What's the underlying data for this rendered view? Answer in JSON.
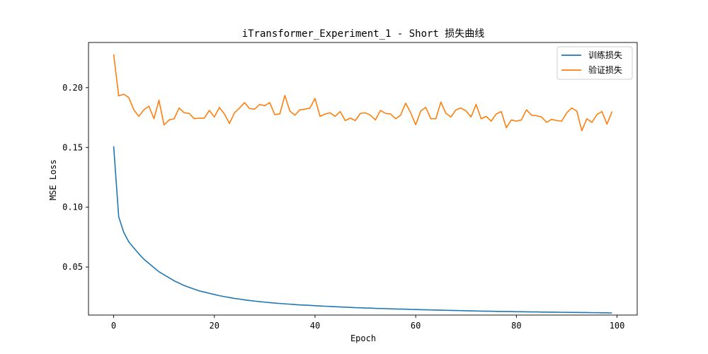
{
  "chart_data": {
    "type": "line",
    "title": "iTransformer_Experiment_1 - Short 损失曲线",
    "xlabel": "Epoch",
    "ylabel": "MSE Loss",
    "xlim": [
      -5,
      104
    ],
    "ylim": [
      0.0098,
      0.2378
    ],
    "xticks": [
      0,
      20,
      40,
      60,
      80,
      100
    ],
    "xtick_labels": [
      "0",
      "20",
      "40",
      "60",
      "80",
      "100"
    ],
    "yticks": [
      0.05,
      0.1,
      0.15,
      0.2
    ],
    "ytick_labels": [
      "0.05",
      "0.10",
      "0.15",
      "0.20"
    ],
    "grid": false,
    "legend_position": "top-right",
    "x": [
      0,
      1,
      2,
      3,
      4,
      5,
      6,
      7,
      8,
      9,
      10,
      11,
      12,
      13,
      14,
      15,
      16,
      17,
      18,
      19,
      20,
      21,
      22,
      23,
      24,
      25,
      26,
      27,
      28,
      29,
      30,
      31,
      32,
      33,
      34,
      35,
      36,
      37,
      38,
      39,
      40,
      41,
      42,
      43,
      44,
      45,
      46,
      47,
      48,
      49,
      50,
      51,
      52,
      53,
      54,
      55,
      56,
      57,
      58,
      59,
      60,
      61,
      62,
      63,
      64,
      65,
      66,
      67,
      68,
      69,
      70,
      71,
      72,
      73,
      74,
      75,
      76,
      77,
      78,
      79,
      80,
      81,
      82,
      83,
      84,
      85,
      86,
      87,
      88,
      89,
      90,
      91,
      92,
      93,
      94,
      95,
      96,
      97,
      98,
      99
    ],
    "series": [
      {
        "name": "训练损失",
        "color": "#1f77b4",
        "values": [
          0.151,
          0.092,
          0.079,
          0.071,
          0.066,
          0.061,
          0.0565,
          0.053,
          0.0495,
          0.046,
          0.0435,
          0.041,
          0.0385,
          0.0365,
          0.0345,
          0.033,
          0.0315,
          0.03,
          0.029,
          0.028,
          0.027,
          0.026,
          0.0252,
          0.0245,
          0.0237,
          0.0232,
          0.0225,
          0.022,
          0.0215,
          0.021,
          0.0206,
          0.0202,
          0.0198,
          0.0195,
          0.0192,
          0.0189,
          0.0186,
          0.0183,
          0.0181,
          0.0179,
          0.0176,
          0.0174,
          0.0172,
          0.017,
          0.0168,
          0.0166,
          0.0164,
          0.0162,
          0.016,
          0.0159,
          0.0157,
          0.0156,
          0.0154,
          0.0153,
          0.0152,
          0.015,
          0.0149,
          0.0148,
          0.0147,
          0.0145,
          0.0144,
          0.0143,
          0.0142,
          0.0141,
          0.014,
          0.0139,
          0.0138,
          0.0137,
          0.0136,
          0.0135,
          0.0134,
          0.0133,
          0.0132,
          0.0131,
          0.013,
          0.013,
          0.0129,
          0.0128,
          0.0128,
          0.0127,
          0.0126,
          0.0126,
          0.0125,
          0.0124,
          0.0124,
          0.0123,
          0.0123,
          0.0122,
          0.0122,
          0.0121,
          0.0121,
          0.012,
          0.012,
          0.0119,
          0.0119,
          0.0118,
          0.0118,
          0.0117,
          0.0117,
          0.0115
        ]
      },
      {
        "name": "验证损失",
        "color": "#ff7f0e",
        "values": [
          0.2278,
          0.1932,
          0.1945,
          0.1918,
          0.1815,
          0.176,
          0.1815,
          0.1845,
          0.174,
          0.1895,
          0.1688,
          0.173,
          0.174,
          0.183,
          0.179,
          0.1785,
          0.174,
          0.1745,
          0.1745,
          0.181,
          0.1755,
          0.1835,
          0.178,
          0.17,
          0.179,
          0.183,
          0.1875,
          0.1825,
          0.182,
          0.186,
          0.185,
          0.1875,
          0.1775,
          0.178,
          0.1935,
          0.1805,
          0.177,
          0.1815,
          0.182,
          0.183,
          0.191,
          0.176,
          0.178,
          0.179,
          0.176,
          0.18,
          0.1725,
          0.1745,
          0.1725,
          0.1785,
          0.179,
          0.177,
          0.173,
          0.181,
          0.1785,
          0.178,
          0.174,
          0.177,
          0.187,
          0.179,
          0.169,
          0.1805,
          0.1835,
          0.174,
          0.174,
          0.188,
          0.1785,
          0.1755,
          0.1815,
          0.183,
          0.1805,
          0.1755,
          0.186,
          0.174,
          0.176,
          0.172,
          0.178,
          0.18,
          0.1665,
          0.173,
          0.172,
          0.173,
          0.1815,
          0.177,
          0.1765,
          0.1755,
          0.171,
          0.1735,
          0.1725,
          0.172,
          0.179,
          0.183,
          0.1805,
          0.164,
          0.174,
          0.171,
          0.1775,
          0.18,
          0.1695,
          0.18
        ]
      }
    ]
  }
}
